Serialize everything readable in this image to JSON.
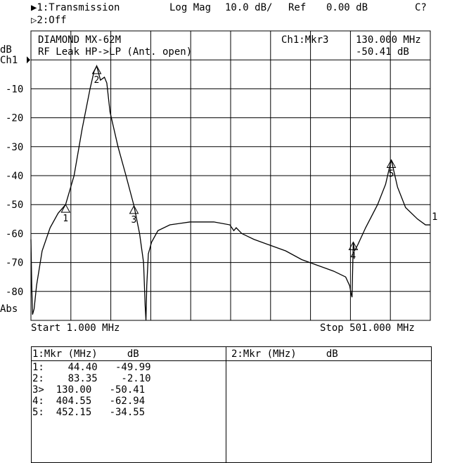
{
  "header": {
    "ch1": "▶1:Transmission",
    "format": "Log Mag",
    "scale": "10.0 dB/",
    "ref_label": "Ref",
    "ref_value": "0.00 dB",
    "status": "C?",
    "ch2": "▷2:Off"
  },
  "annotation": {
    "line1": "DIAMOND MX-62M",
    "line2": "RF Leak HP->LP (Ant. open)",
    "active_marker": "Ch1:Mkr3",
    "marker_freq": "130.000 MHz",
    "marker_value": "-50.41 dB"
  },
  "axis": {
    "unit": "dB",
    "channel": "Ch1",
    "mode": "Abs",
    "start": "Start 1.000 MHz",
    "stop": "Stop 501.000 MHz",
    "right_ref": "1"
  },
  "chart_data": {
    "type": "line",
    "xlim": [
      1,
      501
    ],
    "ylim": [
      -90,
      10
    ],
    "grid": true,
    "yticks": [
      -10,
      -20,
      -30,
      -40,
      -50,
      -60,
      -70,
      -80
    ],
    "series": [
      {
        "x": [
          1,
          2,
          3,
          5,
          8,
          15,
          25,
          35,
          44.4,
          55,
          65,
          75,
          80,
          83.35,
          88,
          93,
          96,
          100,
          110,
          120,
          130,
          137,
          142,
          144,
          145,
          146,
          148,
          152,
          160,
          175,
          200,
          230,
          250,
          255,
          258,
          265,
          280,
          300,
          320,
          340,
          360,
          380,
          395,
          400,
          402,
          403,
          404.55,
          406,
          410,
          420,
          435,
          445,
          450,
          452.15,
          455,
          460,
          470,
          485,
          495,
          501
        ],
        "y": [
          -62,
          -78,
          -88,
          -86,
          -78,
          -66,
          -58,
          -53,
          -50,
          -40,
          -24,
          -10,
          -4,
          -2.1,
          -7,
          -6,
          -8,
          -18,
          -30,
          -40,
          -50.41,
          -60,
          -70,
          -85,
          -90,
          -78,
          -67,
          -63,
          -59,
          -57,
          -56,
          -56,
          -57,
          -59,
          -58,
          -60,
          -62,
          -64,
          -66,
          -69,
          -71,
          -73,
          -75,
          -78,
          -81,
          -82,
          -62.94,
          -66,
          -64,
          -58,
          -50,
          -43,
          -37,
          -34.55,
          -38,
          -44,
          -51,
          -55,
          -57,
          -57
        ]
      }
    ],
    "markers": [
      {
        "n": "1",
        "freq_mhz": 44.4,
        "db": -49.99
      },
      {
        "n": "2",
        "freq_mhz": 83.35,
        "db": -2.1
      },
      {
        "n": "3",
        "freq_mhz": 130.0,
        "db": -50.41
      },
      {
        "n": "4",
        "freq_mhz": 404.55,
        "db": -62.94
      },
      {
        "n": "5",
        "freq_mhz": 452.15,
        "db": -34.55
      }
    ]
  },
  "table": {
    "ch1_header": "1:Mkr (MHz)     dB",
    "ch2_header": "2:Mkr (MHz)     dB",
    "rows": [
      "1:    44.40   -49.99",
      "2:    83.35    -2.10",
      "3>  130.00   -50.41",
      "4:  404.55   -62.94",
      "5:  452.15   -34.55"
    ]
  }
}
